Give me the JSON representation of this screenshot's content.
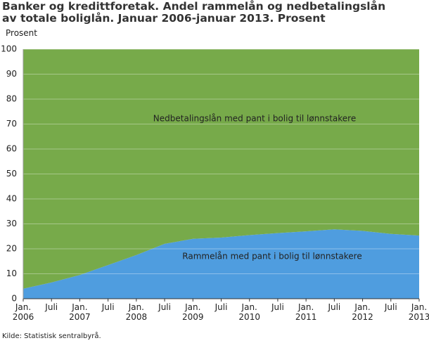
{
  "chart_data": {
    "type": "stacked-area",
    "title": "Banker og kredittforetak. Andel rammelån og nedbetalingslån av totale boliglån.  Januar 2006-januar 2013. Prosent",
    "y_label": "Prosent",
    "source": "Kilde: Statistisk sentralbyrå.",
    "categories": [
      "Jan. 2006",
      "Juli",
      "Jan. 2007",
      "Juli",
      "Jan. 2008",
      "Juli",
      "Jan. 2009",
      "Juli",
      "Jan. 2010",
      "Juli",
      "Jan. 2011",
      "Juli",
      "Jan. 2012",
      "Juli",
      "Jan. 2013"
    ],
    "series": [
      {
        "name": "Rammelån med pant i bolig til lønnstakere",
        "color": "#4f9ddf",
        "values": [
          4,
          6.5,
          9.5,
          13.5,
          17.5,
          22,
          24,
          24.5,
          25.5,
          26.3,
          27,
          27.8,
          27.2,
          26,
          25.3
        ]
      },
      {
        "name": "Nedbetalingslån med pant i bolig til lønnstakere",
        "color": "#77aa4a",
        "values": [
          96,
          93.5,
          90.5,
          86.5,
          82.5,
          78,
          76,
          75.5,
          74.5,
          73.7,
          73,
          72.2,
          72.8,
          74,
          74.7
        ]
      }
    ],
    "ylim": [
      0,
      100
    ],
    "yticks": [
      0,
      10,
      20,
      30,
      40,
      50,
      60,
      70,
      80,
      90,
      100
    ],
    "grid": true
  }
}
